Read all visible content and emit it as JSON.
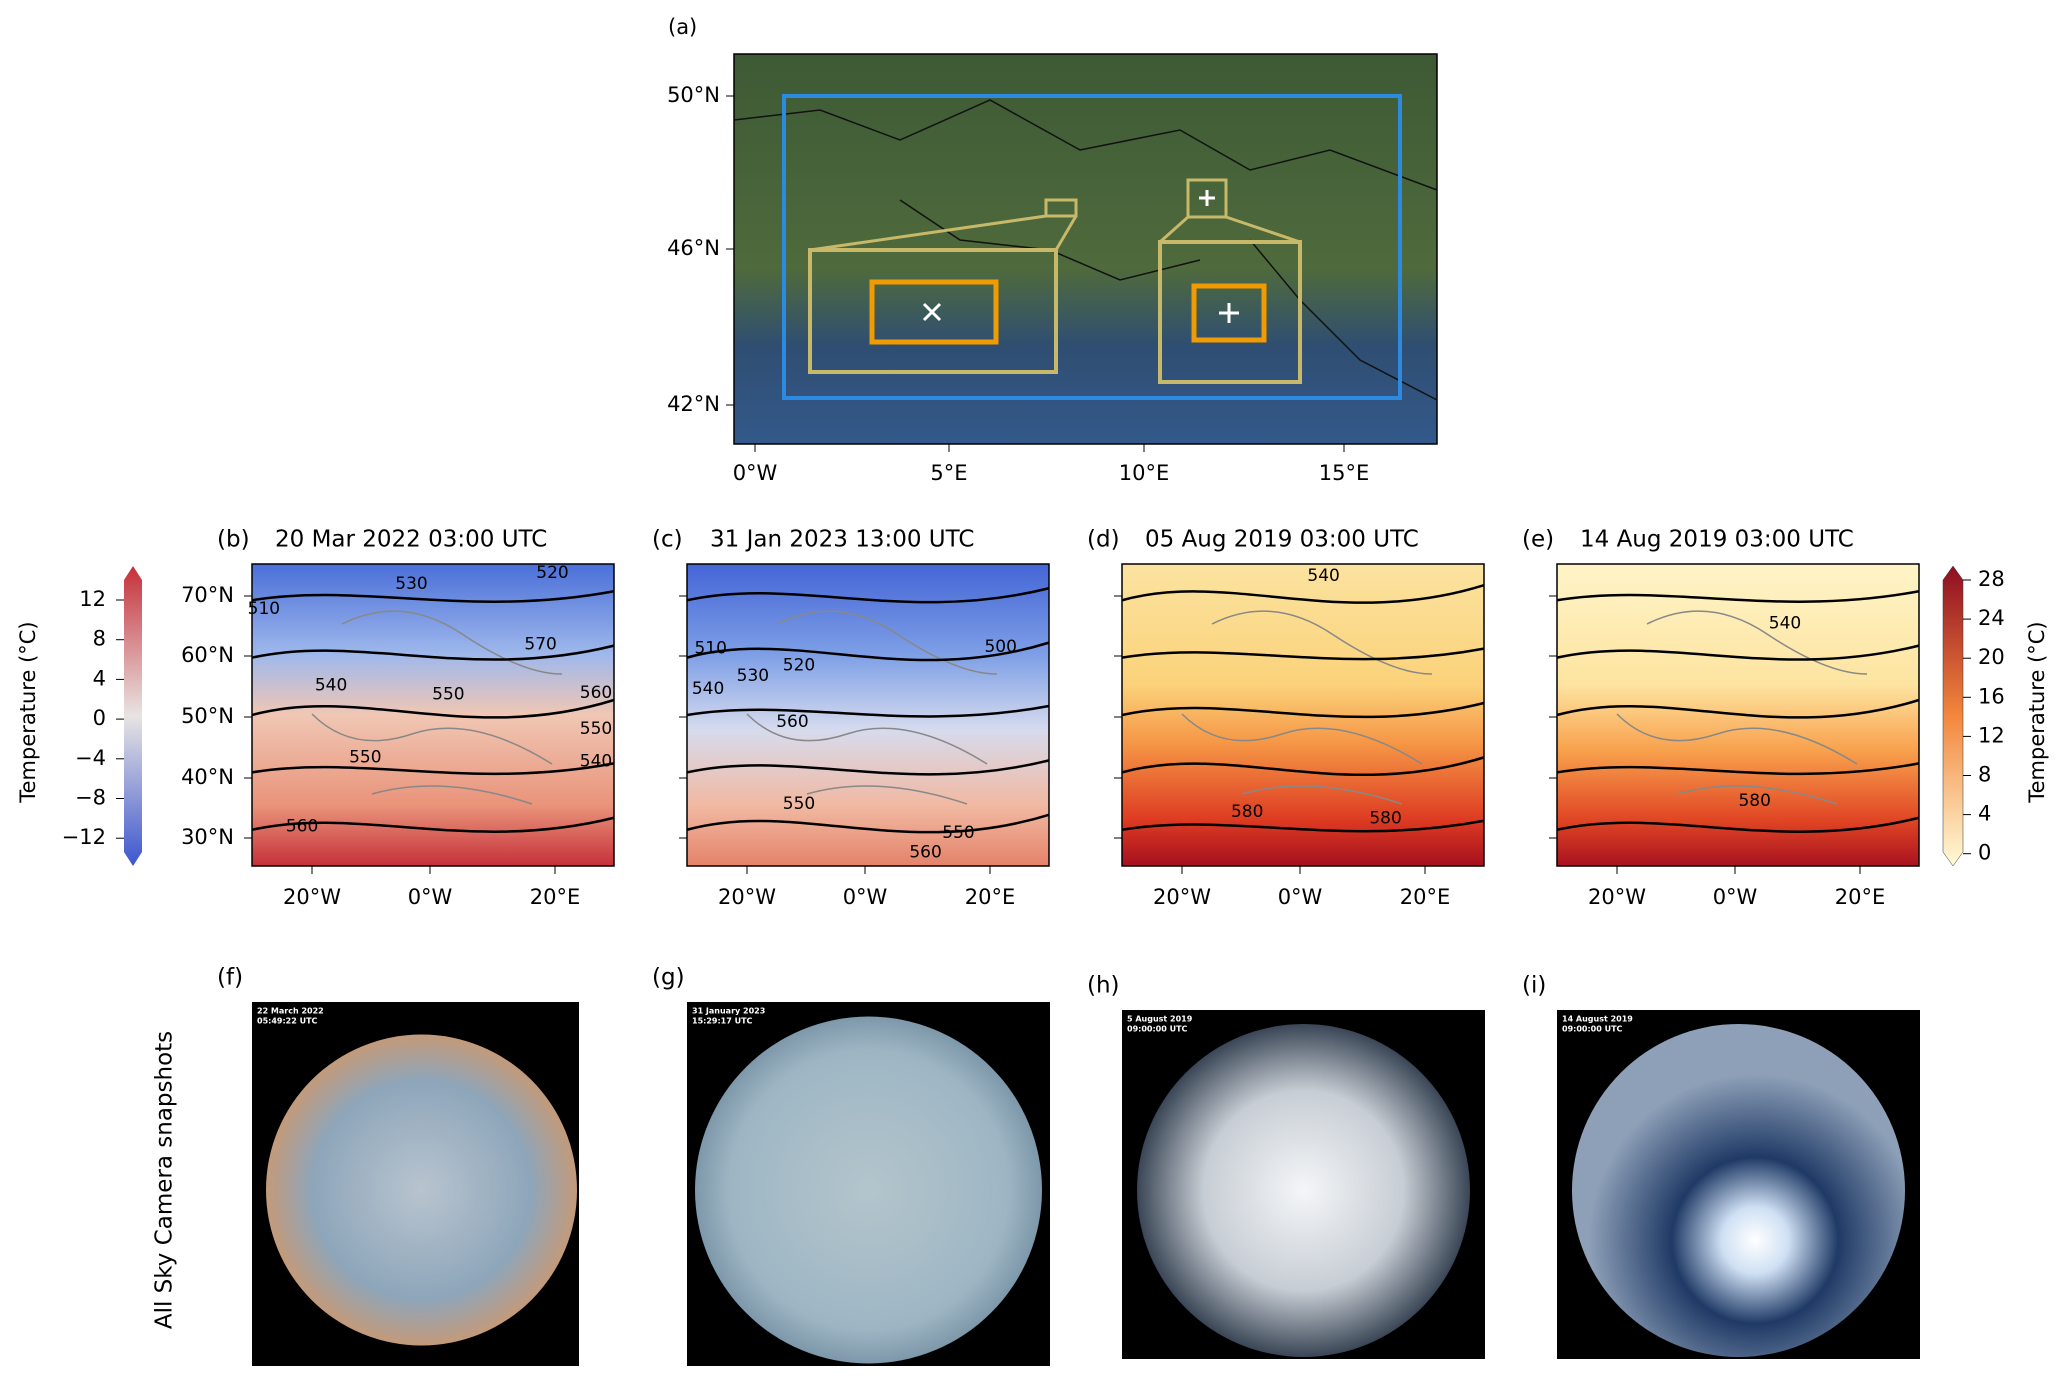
{
  "panel_a": {
    "label": "(a)",
    "yticks": [
      "50°N",
      "46°N",
      "42°N"
    ],
    "xticks": [
      "0°W",
      "5°E",
      "10°E",
      "15°E"
    ]
  },
  "maps": [
    {
      "label": "(b)",
      "title": "20 Mar 2022 03:00 UTC",
      "contours": [
        "510",
        "530",
        "520",
        "570",
        "540",
        "550",
        "560",
        "550",
        "540",
        "550",
        "560"
      ]
    },
    {
      "label": "(c)",
      "title": "31 Jan 2023 13:00 UTC",
      "contours": [
        "510",
        "520",
        "530",
        "540",
        "560",
        "500",
        "550",
        "550",
        "560"
      ]
    },
    {
      "label": "(d)",
      "title": "05 Aug 2019 03:00 UTC",
      "contours": [
        "540",
        "580",
        "580"
      ]
    },
    {
      "label": "(e)",
      "title": "14 Aug 2019 03:00 UTC",
      "contours": [
        "540",
        "580"
      ]
    }
  ],
  "map_yticks": [
    "70°N",
    "60°N",
    "50°N",
    "40°N",
    "30°N"
  ],
  "map_xticks": [
    "20°W",
    "0°W",
    "20°E"
  ],
  "colorbar_left": {
    "label": "Temperature (°C)",
    "ticks": [
      "12",
      "8",
      "4",
      "0",
      "−4",
      "−8",
      "−12"
    ]
  },
  "colorbar_right": {
    "label": "Temperature (°C)",
    "ticks": [
      "28",
      "24",
      "20",
      "16",
      "12",
      "8",
      "4",
      "0"
    ]
  },
  "cameras": {
    "row_label": "All Sky Camera snapshots",
    "panels": [
      {
        "label": "(f)",
        "date": "22 March 2022",
        "time": "05:49:22 UTC"
      },
      {
        "label": "(g)",
        "date": "31 January 2023",
        "time": "15:29:17 UTC"
      },
      {
        "label": "(h)",
        "date": "5 August 2019",
        "time": "09:00:00 UTC"
      },
      {
        "label": "(i)",
        "date": "14 August 2019",
        "time": "09:00:00 UTC"
      }
    ]
  }
}
